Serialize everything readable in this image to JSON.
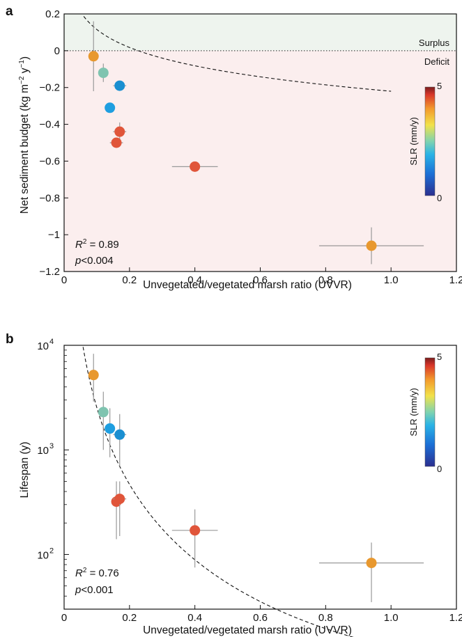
{
  "chart_data": [
    {
      "panel_label": "a",
      "type": "scatter",
      "xlabel": "Unvegetated/vegetated marsh ratio (UVVR)",
      "ylabel": "Net sediment budget (kg m−2 y−1)",
      "xlim": [
        0,
        1.2
      ],
      "ylim": [
        -1.2,
        0.2
      ],
      "x_ticks": [
        "0",
        "0.2",
        "0.4",
        "0.6",
        "0.8",
        "1.0",
        "1.2"
      ],
      "y_ticks": [
        "0.2",
        "0",
        "−0.2",
        "−0.4",
        "−0.6",
        "−0.8",
        "−1",
        "−1.2"
      ],
      "regions": {
        "surplus_label": "Surplus",
        "deficit_label": "Deficit",
        "surplus_color": "#eef4ee",
        "deficit_color": "#fbeeee"
      },
      "stats": {
        "r2": "R2 = 0.89",
        "p": "p<0.004"
      },
      "colorbar": {
        "label": "SLR (mm/y)",
        "min": "0",
        "max": "5"
      },
      "fit": {
        "style": "dashed",
        "x_range": [
          0.06,
          1.0
        ]
      },
      "points": [
        {
          "x": 0.09,
          "y": -0.03,
          "xerr": 0.01,
          "yerr": 0.19,
          "slr": 3.3,
          "color": "#e8982e"
        },
        {
          "x": 0.12,
          "y": -0.12,
          "xerr": 0.015,
          "yerr": 0.05,
          "slr": 2.2,
          "color": "#7fc4b0"
        },
        {
          "x": 0.17,
          "y": -0.19,
          "xerr": 0.02,
          "yerr": 0.02,
          "slr": 1.4,
          "color": "#1a8fd1"
        },
        {
          "x": 0.14,
          "y": -0.31,
          "xerr": 0.015,
          "yerr": 0.02,
          "slr": 1.5,
          "color": "#1e9ee0"
        },
        {
          "x": 0.17,
          "y": -0.44,
          "xerr": 0.02,
          "yerr": 0.05,
          "slr": 4.5,
          "color": "#e0553a"
        },
        {
          "x": 0.16,
          "y": -0.5,
          "xerr": 0.02,
          "yerr": 0.02,
          "slr": 4.5,
          "color": "#e0553a"
        },
        {
          "x": 0.4,
          "y": -0.63,
          "xerr": 0.07,
          "yerr": 0.01,
          "slr": 4.5,
          "color": "#e0553a"
        },
        {
          "x": 0.94,
          "y": -1.06,
          "xerr": 0.16,
          "yerr": 0.1,
          "slr": 3.3,
          "color": "#e8982e"
        }
      ]
    },
    {
      "panel_label": "b",
      "type": "scatter",
      "scale_y": "log",
      "xlabel": "Unvegetated/vegetated marsh ratio (UVVR)",
      "ylabel": "Lifespan (y)",
      "xlim": [
        0,
        1.2
      ],
      "ylim": [
        30,
        10000
      ],
      "x_ticks": [
        "0",
        "0.2",
        "0.4",
        "0.6",
        "0.8",
        "1.0",
        "1.2"
      ],
      "y_ticks": [
        {
          "value": 10000,
          "base": "10",
          "exp": "4"
        },
        {
          "value": 1000,
          "base": "10",
          "exp": "3"
        },
        {
          "value": 100,
          "base": "10",
          "exp": "2"
        }
      ],
      "stats": {
        "r2": "R2 = 0.76",
        "p": "p<0.001"
      },
      "colorbar": {
        "label": "SLR (mm/y)",
        "min": "0",
        "max": "5"
      },
      "fit": {
        "style": "dashed",
        "x_range": [
          0.04,
          1.0
        ]
      },
      "points": [
        {
          "x": 0.09,
          "y": 5200,
          "xerr": 0.0,
          "ylo": 2900,
          "yhi": 8300,
          "slr": 3.3,
          "color": "#e8982e"
        },
        {
          "x": 0.12,
          "y": 2300,
          "xerr": 0.015,
          "ylo": 1000,
          "yhi": 3600,
          "slr": 2.2,
          "color": "#7fc4b0"
        },
        {
          "x": 0.14,
          "y": 1600,
          "xerr": 0.015,
          "ylo": 850,
          "yhi": 2500,
          "slr": 1.5,
          "color": "#1e9ee0"
        },
        {
          "x": 0.17,
          "y": 1400,
          "xerr": 0.02,
          "ylo": 700,
          "yhi": 2200,
          "slr": 1.4,
          "color": "#1a8fd1"
        },
        {
          "x": 0.16,
          "y": 320,
          "xerr": 0.015,
          "ylo": 140,
          "yhi": 500,
          "slr": 4.5,
          "color": "#e0553a"
        },
        {
          "x": 0.17,
          "y": 340,
          "xerr": 0.02,
          "ylo": 150,
          "yhi": 500,
          "slr": 4.5,
          "color": "#e0553a"
        },
        {
          "x": 0.4,
          "y": 170,
          "xerr": 0.07,
          "ylo": 75,
          "yhi": 270,
          "slr": 4.5,
          "color": "#e0553a"
        },
        {
          "x": 0.94,
          "y": 83,
          "xerr": 0.16,
          "ylo": 35,
          "yhi": 130,
          "slr": 3.3,
          "color": "#e8982e"
        }
      ]
    }
  ]
}
